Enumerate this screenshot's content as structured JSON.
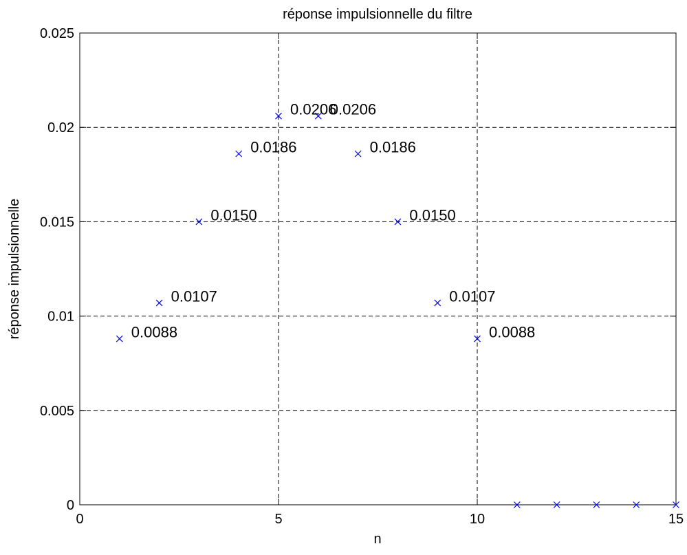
{
  "chart_data": {
    "type": "scatter",
    "title": "réponse impulsionnelle du filtre",
    "xlabel": "n",
    "ylabel": "réponse impulsionnelle",
    "xlim": [
      0,
      15
    ],
    "ylim": [
      0,
      0.025
    ],
    "xticks": [
      0,
      5,
      10,
      15
    ],
    "xtick_labels": [
      "0",
      "5",
      "10",
      "15"
    ],
    "yticks": [
      0,
      0.005,
      0.01,
      0.015,
      0.02,
      0.025
    ],
    "ytick_labels": [
      "0",
      "0.005",
      "0.01",
      "0.015",
      "0.02",
      "0.025"
    ],
    "grid": true,
    "marker": "x",
    "marker_color": "#0000ff",
    "points": [
      {
        "x": 1,
        "y": 0.0088,
        "label": "0.0088"
      },
      {
        "x": 2,
        "y": 0.0107,
        "label": "0.0107"
      },
      {
        "x": 3,
        "y": 0.015,
        "label": "0.0150"
      },
      {
        "x": 4,
        "y": 0.0186,
        "label": "0.0186"
      },
      {
        "x": 5,
        "y": 0.0206,
        "label": "0.0206"
      },
      {
        "x": 6,
        "y": 0.0206,
        "label": "0.0206"
      },
      {
        "x": 7,
        "y": 0.0186,
        "label": "0.0186"
      },
      {
        "x": 8,
        "y": 0.015,
        "label": "0.0150"
      },
      {
        "x": 9,
        "y": 0.0107,
        "label": "0.0107"
      },
      {
        "x": 10,
        "y": 0.0088,
        "label": "0.0088"
      },
      {
        "x": 11,
        "y": 0,
        "label": ""
      },
      {
        "x": 12,
        "y": 0,
        "label": ""
      },
      {
        "x": 13,
        "y": 0,
        "label": ""
      },
      {
        "x": 14,
        "y": 0,
        "label": ""
      },
      {
        "x": 15,
        "y": 0,
        "label": ""
      }
    ]
  }
}
